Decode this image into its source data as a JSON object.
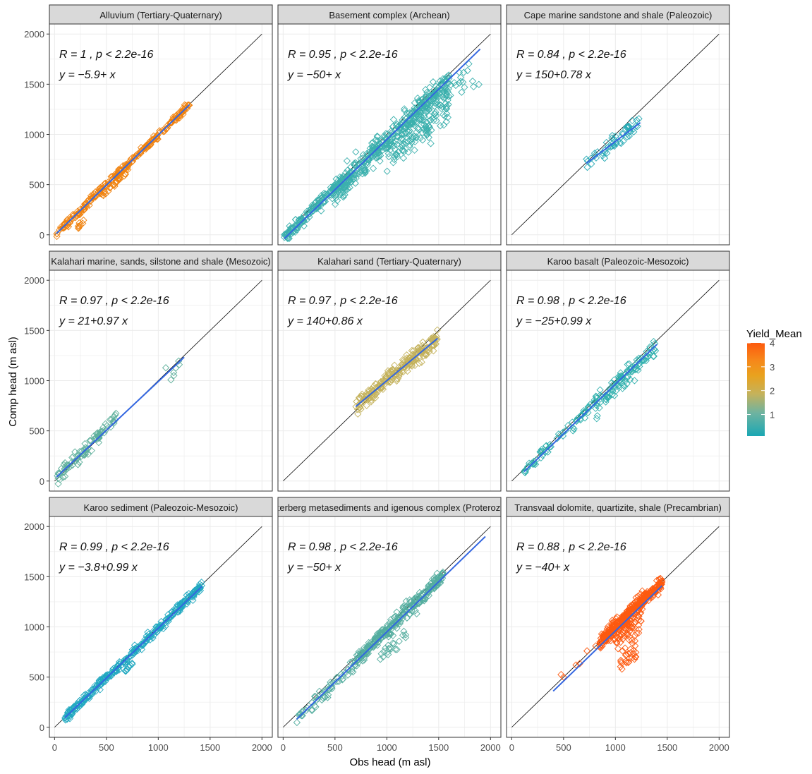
{
  "chart_data": {
    "type": "scatter",
    "xlabel": "Obs head (m asl)",
    "ylabel": "Comp head (m asl)",
    "xlim": [
      -50,
      2100
    ],
    "ylim": [
      -100,
      2100
    ],
    "x_ticks": [
      0,
      500,
      1000,
      1500,
      2000
    ],
    "y_ticks": [
      0,
      500,
      1000,
      1500,
      2000
    ],
    "grid": true,
    "reference_line": "1:1",
    "legend": {
      "title": "Yield_Mean",
      "placement": "right",
      "ticks": [
        1,
        2,
        3,
        4
      ],
      "range": [
        0.1,
        4
      ],
      "colors": [
        "#1aa7b3",
        "#6fb3a0",
        "#c4b25c",
        "#e9a21e",
        "#f7861a",
        "#fd5a0e"
      ]
    },
    "panels": [
      {
        "title": "Alluvium (Tertiary-Quaternary)",
        "stat_r": "R = 1 , p < 2.2e-16",
        "stat_eq": "y = −5.9+ x",
        "color": "#f0820e",
        "fit": {
          "intercept": -5.9,
          "slope": 1.0,
          "x_range": [
            20,
            1300
          ]
        },
        "clusters": [
          {
            "x0": 20,
            "x1": 350,
            "intercept": -5,
            "slope": 1.0,
            "spread": 40,
            "n": 60
          },
          {
            "x0": 350,
            "x1": 700,
            "intercept": 0,
            "slope": 1.0,
            "spread": 35,
            "n": 70
          },
          {
            "x0": 700,
            "x1": 1300,
            "intercept": -5,
            "slope": 1.0,
            "spread": 30,
            "n": 110
          },
          {
            "x0": 450,
            "x1": 700,
            "intercept": -70,
            "slope": 1.0,
            "spread": 20,
            "n": 25
          },
          {
            "x0": 220,
            "x1": 290,
            "intercept": -150,
            "slope": 1.0,
            "spread": 25,
            "n": 8
          }
        ]
      },
      {
        "title": "Basement complex (Archean)",
        "stat_r": "R = 0.95 , p < 2.2e-16",
        "stat_eq": "y = −50+ x",
        "color": "#3bb0ad",
        "fit": {
          "intercept": -50,
          "slope": 1.0,
          "x_range": [
            10,
            1900
          ]
        },
        "clusters": [
          {
            "x0": 10,
            "x1": 600,
            "intercept": -40,
            "slope": 1.0,
            "spread": 60,
            "n": 160
          },
          {
            "x0": 500,
            "x1": 1600,
            "intercept": -80,
            "slope": 1.0,
            "spread": 130,
            "n": 420
          },
          {
            "x0": 1000,
            "x1": 1600,
            "intercept": -300,
            "slope": 1.0,
            "spread": 150,
            "n": 90
          },
          {
            "x0": 1550,
            "x1": 1940,
            "intercept": 50,
            "slope": 0.85,
            "spread": 120,
            "n": 20
          }
        ]
      },
      {
        "title": "Cape marine sandstone and shale (Paleozoic)",
        "stat_r": "R = 0.84 , p < 2.2e-16",
        "stat_eq": "y = 150+0.78 x",
        "color": "#27aab5",
        "fit": {
          "intercept": 150,
          "slope": 0.78,
          "x_range": [
            720,
            1240
          ]
        },
        "clusters": [
          {
            "x0": 720,
            "x1": 1240,
            "intercept": 150,
            "slope": 0.78,
            "spread": 90,
            "n": 55
          }
        ]
      },
      {
        "title": "Kalahari marine, sands, silstone and shale (Mesozoic)",
        "stat_r": "R = 0.97 , p < 2.2e-16",
        "stat_eq": "y = 21+0.97 x",
        "color": "#5fb09c",
        "fit": {
          "intercept": 21,
          "slope": 0.97,
          "x_range": [
            20,
            1250
          ]
        },
        "clusters": [
          {
            "x0": 20,
            "x1": 480,
            "intercept": 10,
            "slope": 0.97,
            "spread": 80,
            "n": 70
          },
          {
            "x0": 400,
            "x1": 600,
            "intercept": 40,
            "slope": 1.0,
            "spread": 60,
            "n": 25
          },
          {
            "x0": 1050,
            "x1": 1260,
            "intercept": -40,
            "slope": 0.95,
            "spread": 140,
            "n": 7
          }
        ]
      },
      {
        "title": "Kalahari sand (Tertiary-Quaternary)",
        "stat_r": "R = 0.97 , p < 2.2e-16",
        "stat_eq": "y = 140+0.86 x",
        "color": "#c4b25c",
        "fit": {
          "intercept": 140,
          "slope": 0.86,
          "x_range": [
            700,
            1490
          ]
        },
        "clusters": [
          {
            "x0": 700,
            "x1": 1490,
            "intercept": 140,
            "slope": 0.86,
            "spread": 80,
            "n": 230
          }
        ]
      },
      {
        "title": "Karoo basalt (Paleozoic-Mesozoic)",
        "stat_r": "R = 0.98 , p < 2.2e-16",
        "stat_eq": "y = −25+0.99 x",
        "color": "#2fb0ad",
        "fit": {
          "intercept": -25,
          "slope": 0.99,
          "x_range": [
            120,
            1400
          ]
        },
        "clusters": [
          {
            "x0": 120,
            "x1": 800,
            "intercept": -25,
            "slope": 1.0,
            "spread": 50,
            "n": 60
          },
          {
            "x0": 800,
            "x1": 1400,
            "intercept": -40,
            "slope": 0.99,
            "spread": 90,
            "n": 110
          }
        ]
      },
      {
        "title": "Karoo sediment (Paleozoic-Mesozoic)",
        "stat_r": "R = 0.99 , p < 2.2e-16",
        "stat_eq": "y = −3.8+0.99 x",
        "color": "#22a9c0",
        "fit": {
          "intercept": -3.8,
          "slope": 0.99,
          "x_range": [
            100,
            1420
          ]
        },
        "clusters": [
          {
            "x0": 100,
            "x1": 1420,
            "intercept": -3.8,
            "slope": 0.99,
            "spread": 45,
            "n": 320
          },
          {
            "x0": 680,
            "x1": 800,
            "intercept": -120,
            "slope": 1.0,
            "spread": 20,
            "n": 10
          }
        ]
      },
      {
        "title": "Waterberg metasediments and igenous complex (Proterozoic)",
        "stat_r": "R = 0.98 , p < 2.2e-16",
        "stat_eq": "y = −50+ x",
        "color": "#54ad9f",
        "fit": {
          "intercept": -50,
          "slope": 1.0,
          "x_range": [
            130,
            1950
          ]
        },
        "clusters": [
          {
            "x0": 130,
            "x1": 700,
            "intercept": -60,
            "slope": 1.0,
            "spread": 70,
            "n": 60
          },
          {
            "x0": 700,
            "x1": 1550,
            "intercept": -40,
            "slope": 1.0,
            "spread": 70,
            "n": 300
          },
          {
            "x0": 900,
            "x1": 1200,
            "intercept": -250,
            "slope": 1.0,
            "spread": 60,
            "n": 20
          }
        ]
      },
      {
        "title": "Transvaal dolomite, quartizite, shale (Precambrian)",
        "stat_r": "R = 0.88 , p < 2.2e-16",
        "stat_eq": "y = −40+ x",
        "color": "#fd5a10",
        "fit": {
          "intercept": -40,
          "slope": 1.0,
          "x_range": [
            400,
            1450
          ]
        },
        "clusters": [
          {
            "x0": 850,
            "x1": 1450,
            "intercept": 0,
            "slope": 1.0,
            "spread": 70,
            "n": 380
          },
          {
            "x0": 1000,
            "x1": 1250,
            "intercept": -150,
            "slope": 1.0,
            "spread": 120,
            "n": 60
          },
          {
            "x0": 1050,
            "x1": 1200,
            "intercept": -400,
            "slope": 1.0,
            "spread": 120,
            "n": 25
          },
          {
            "x0": 400,
            "x1": 850,
            "intercept": 0,
            "slope": 1.0,
            "spread": 40,
            "n": 6
          }
        ]
      }
    ]
  }
}
